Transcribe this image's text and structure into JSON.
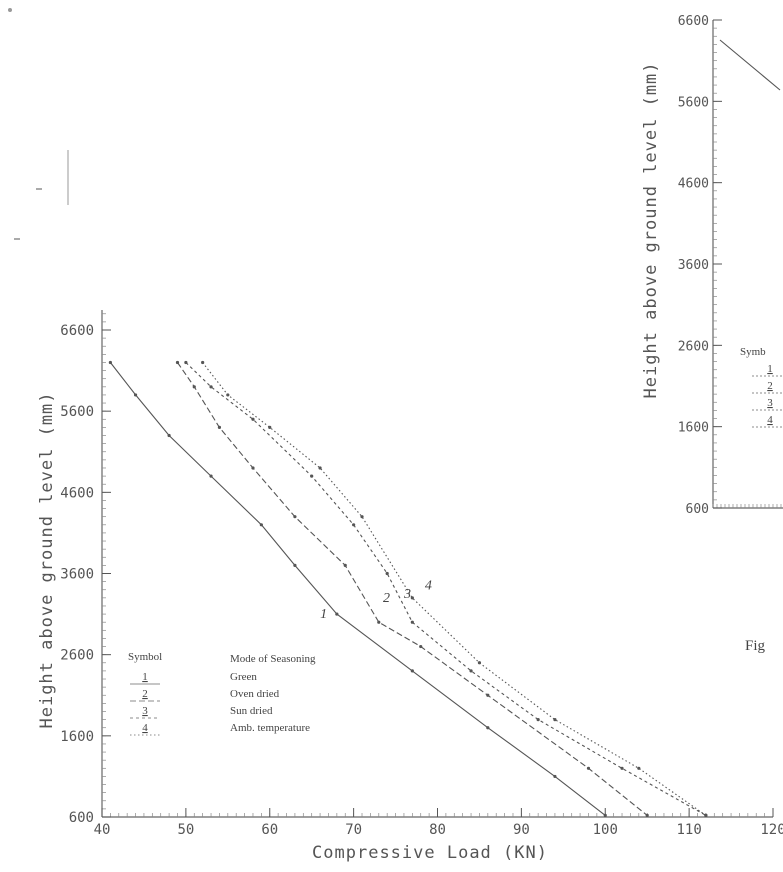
{
  "chart_data": [
    {
      "type": "line",
      "title": "",
      "xlabel": "Compressive Load (KN)",
      "ylabel": "Height above ground level (mm)",
      "xlim": [
        40,
        120
      ],
      "ylim": [
        600,
        6600
      ],
      "x_ticks": [
        "40",
        "50",
        "60",
        "70",
        "80",
        "90",
        "100",
        "110",
        "120"
      ],
      "y_ticks": [
        "600",
        "1600",
        "2600",
        "3600",
        "4600",
        "5600",
        "6600"
      ],
      "grid": false,
      "legend": {
        "header_symbol": "Symbol",
        "header_mode": "Mode of Seasoning",
        "placement": "bottom-left"
      },
      "series": [
        {
          "name": "Green",
          "symbol": "1",
          "points": [
            [
              41,
              6200
            ],
            [
              44,
              5800
            ],
            [
              48,
              5300
            ],
            [
              53,
              4800
            ],
            [
              59,
              4200
            ],
            [
              63,
              3700
            ],
            [
              68,
              3100
            ],
            [
              77,
              2400
            ],
            [
              86,
              1700
            ],
            [
              94,
              1100
            ],
            [
              100,
              620
            ]
          ]
        },
        {
          "name": "Oven dried",
          "symbol": "2",
          "points": [
            [
              49,
              6200
            ],
            [
              51,
              5900
            ],
            [
              54,
              5400
            ],
            [
              58,
              4900
            ],
            [
              63,
              4300
            ],
            [
              69,
              3700
            ],
            [
              73,
              3000
            ],
            [
              78,
              2700
            ],
            [
              86,
              2100
            ],
            [
              98,
              1200
            ],
            [
              105,
              620
            ]
          ]
        },
        {
          "name": "Sun dried",
          "symbol": "3",
          "points": [
            [
              50,
              6200
            ],
            [
              53,
              5900
            ],
            [
              58,
              5500
            ],
            [
              65,
              4800
            ],
            [
              70,
              4200
            ],
            [
              74,
              3600
            ],
            [
              77,
              3000
            ],
            [
              84,
              2400
            ],
            [
              92,
              1800
            ],
            [
              102,
              1200
            ],
            [
              112,
              620
            ]
          ]
        },
        {
          "name": "Amb. temperature",
          "symbol": "4",
          "points": [
            [
              52,
              6200
            ],
            [
              55,
              5800
            ],
            [
              60,
              5400
            ],
            [
              66,
              4900
            ],
            [
              71,
              4300
            ],
            [
              77,
              3300
            ],
            [
              85,
              2500
            ],
            [
              94,
              1800
            ],
            [
              104,
              1200
            ],
            [
              112,
              620
            ]
          ]
        }
      ],
      "curve_labels": [
        "1",
        "2",
        "3",
        "4"
      ]
    },
    {
      "type": "line",
      "note": "second chart, partially cut off at the right edge",
      "ylabel": "Height above ground level (mm)",
      "y_ticks": [
        "600",
        "1600",
        "2600",
        "3600",
        "4600",
        "5600",
        "6600"
      ],
      "legend": {
        "header_symbol": "Symb",
        "symbols": [
          "1",
          "2",
          "3",
          "4"
        ]
      },
      "series": [
        {
          "points": [
            [
              0,
              6600
            ],
            [
              1,
              5800
            ]
          ]
        }
      ]
    }
  ],
  "figure_caption": "Fig"
}
